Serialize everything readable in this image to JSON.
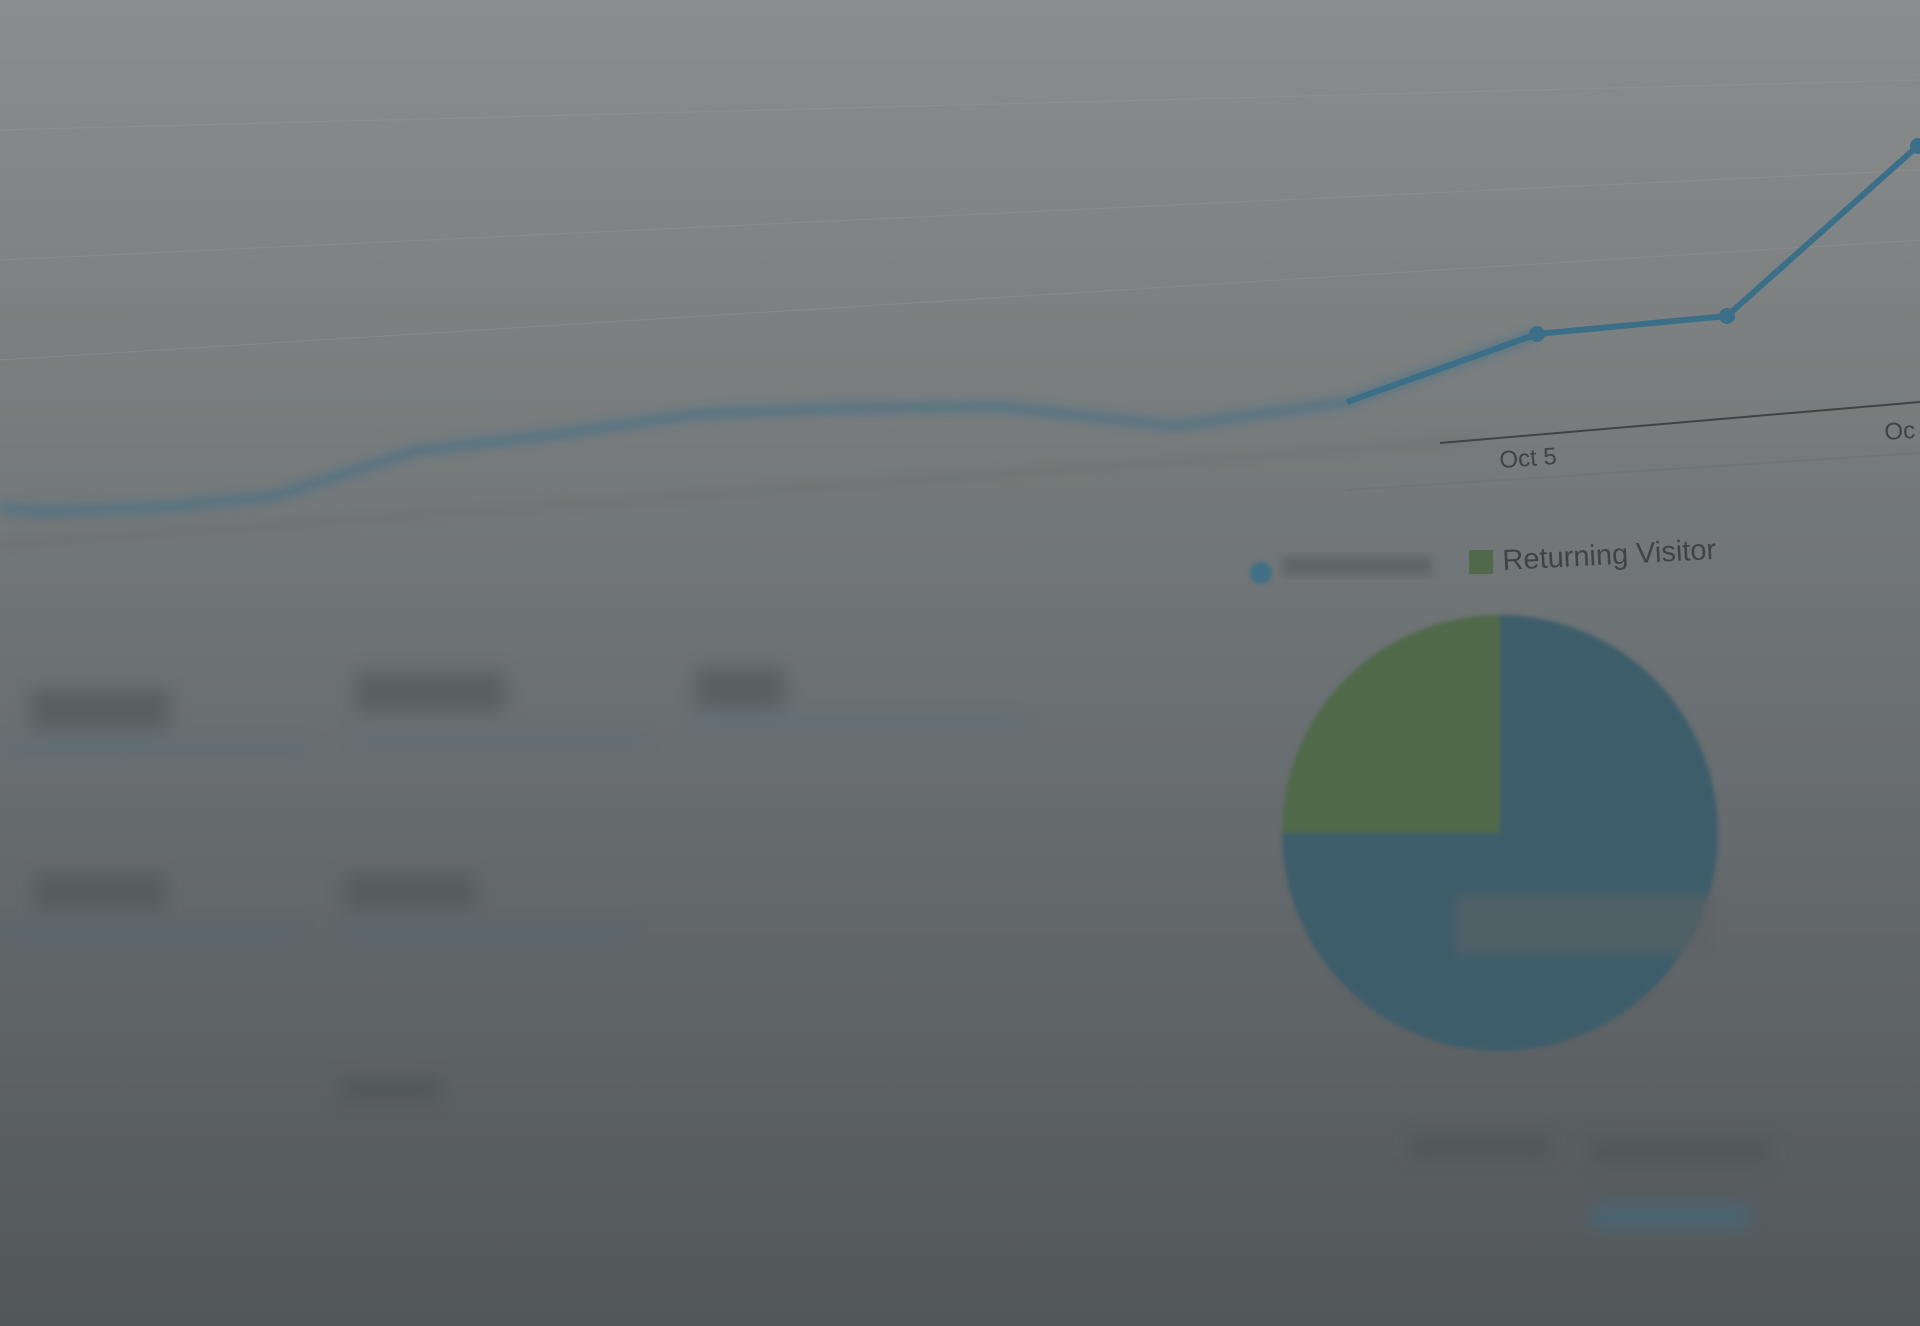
{
  "axis_labels": [
    "Oct 5",
    "Oc"
  ],
  "legend": {
    "returning_visitor": "Returning Visitor"
  },
  "pie": {
    "values": [
      75,
      25
    ],
    "colors": [
      "#3e5d6b",
      "#50694a"
    ]
  }
}
